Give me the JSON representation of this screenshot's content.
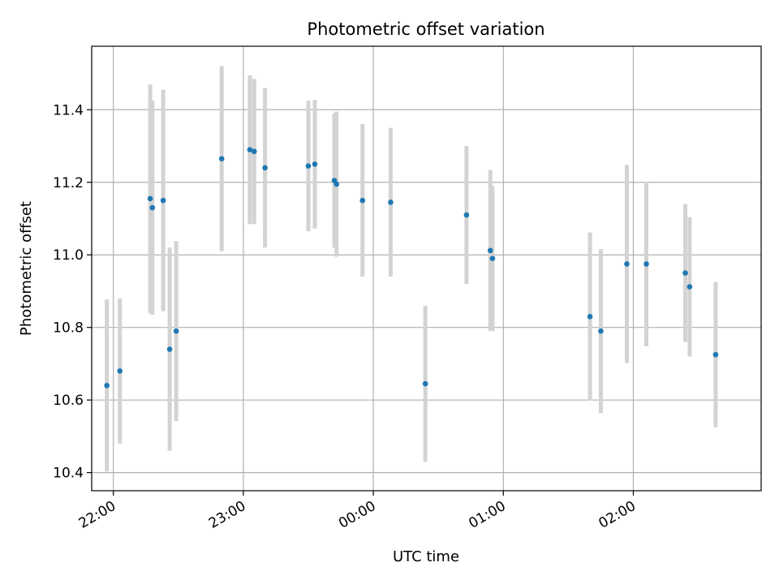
{
  "chart_data": {
    "type": "scatter",
    "title": "Photometric offset variation",
    "xlabel": "UTC time",
    "ylabel": "Photometric offset",
    "xlim": [
      "21:50",
      "02:59"
    ],
    "ylim": [
      10.35,
      11.575
    ],
    "x_ticks": [
      "22:00",
      "23:00",
      "00:00",
      "01:00",
      "02:00"
    ],
    "y_ticks": [
      "10.4",
      "10.6",
      "10.8",
      "11.0",
      "11.2",
      "11.4"
    ],
    "grid": true,
    "colors": {
      "point": "#1f77b4",
      "errorbar": "#d3d3d3",
      "grid": "#b0b0b0"
    },
    "points": [
      {
        "x": "21:57",
        "y": 10.64,
        "err": 0.237
      },
      {
        "x": "22:03",
        "y": 10.68,
        "err": 0.2
      },
      {
        "x": "22:17",
        "y": 11.155,
        "err": 0.315
      },
      {
        "x": "22:18",
        "y": 11.13,
        "err": 0.295
      },
      {
        "x": "22:23",
        "y": 11.15,
        "err": 0.305
      },
      {
        "x": "22:26",
        "y": 10.74,
        "err": 0.28
      },
      {
        "x": "22:29",
        "y": 10.79,
        "err": 0.248
      },
      {
        "x": "22:50",
        "y": 11.265,
        "err": 0.255
      },
      {
        "x": "23:03",
        "y": 11.29,
        "err": 0.205
      },
      {
        "x": "23:05",
        "y": 11.285,
        "err": 0.2
      },
      {
        "x": "23:10",
        "y": 11.24,
        "err": 0.22
      },
      {
        "x": "23:30",
        "y": 11.245,
        "err": 0.18
      },
      {
        "x": "23:33",
        "y": 11.25,
        "err": 0.177
      },
      {
        "x": "23:42",
        "y": 11.205,
        "err": 0.185
      },
      {
        "x": "23:43",
        "y": 11.195,
        "err": 0.2
      },
      {
        "x": "23:55",
        "y": 11.15,
        "err": 0.21
      },
      {
        "x": "00:08",
        "y": 11.145,
        "err": 0.205
      },
      {
        "x": "00:24",
        "y": 10.645,
        "err": 0.215
      },
      {
        "x": "00:43",
        "y": 11.11,
        "err": 0.19
      },
      {
        "x": "00:54",
        "y": 11.012,
        "err": 0.222
      },
      {
        "x": "00:55",
        "y": 10.99,
        "err": 0.2
      },
      {
        "x": "01:40",
        "y": 10.83,
        "err": 0.232
      },
      {
        "x": "01:45",
        "y": 10.79,
        "err": 0.226
      },
      {
        "x": "01:57",
        "y": 10.975,
        "err": 0.273
      },
      {
        "x": "02:06",
        "y": 10.975,
        "err": 0.227
      },
      {
        "x": "02:24",
        "y": 10.95,
        "err": 0.19
      },
      {
        "x": "02:26",
        "y": 10.912,
        "err": 0.192
      },
      {
        "x": "02:38",
        "y": 10.725,
        "err": 0.2
      }
    ]
  }
}
